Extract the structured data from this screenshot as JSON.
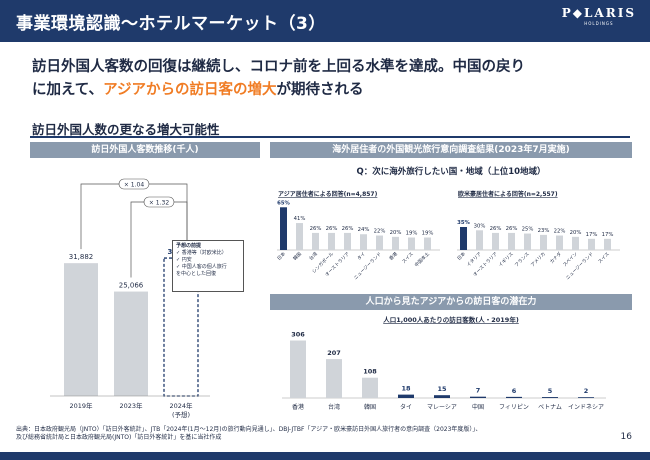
{
  "header": {
    "title": "事業環境認識～ホテルマーケット（3）",
    "logo_main": "P◆LARIS",
    "logo_sub": "HOLDINGS"
  },
  "lead": {
    "line1": "訪日外国人客数の回復は継続し、コロナ前を上回る水準を達成。中国の戻り",
    "line2_pre": "に加えて、",
    "line2_hl": "アジアからの訪日客の増大",
    "line2_post": "が期待される"
  },
  "section_title": "訪日外国人数の更なる増大可能性",
  "left_panel": {
    "head": "訪日外国人客数推移(千人)",
    "multipliers": [
      "× 1.04",
      "× 1.32"
    ],
    "note": {
      "title": "予想の前提",
      "items": [
        "✓ 香港等（対欧米比）",
        "✓ 円安",
        "✓ 中国人客の個人旅行",
        "を中心とした回復"
      ]
    }
  },
  "right_panel": {
    "head": "海外居住者の外国観光旅行意向調査結果(2023年7月実施)",
    "question": "Q：次に海外旅行したい国・地域（上位10地域）",
    "asia_label": "アジア居住者による回答(n=4,857)",
    "west_label": "欧米豪居住者による回答(n=2,557)"
  },
  "bottom_panel": {
    "head": "人口から見たアジアからの訪日客の潜在力",
    "subtitle": "人口1,000人あたりの訪日客数(人・2019年)"
  },
  "footer": {
    "line1": "出典：日本政府観光局（JNTO）「訪日外客統計」、JTB「2024年(1月～12月)の旅行動向見通し」、DBJ-JTBF「アジア・欧米豪訪日外国人旅行者の意向調査（2023年度版）」、",
    "line2": "及び総務省統計局と日本政府観光局(JNTO)「訪日外客統計」を基に当社作成"
  },
  "page_number": "16",
  "colors": {
    "navy": "#1f3a6b",
    "accent": "#f07c24",
    "bar_gray": "#d0d4d9",
    "bar_navy": "#1f3a6b",
    "panel_gray": "#8a9aad"
  },
  "chart_data": [
    {
      "type": "bar",
      "categories": [
        "2019年",
        "2023年",
        "2024年"
      ],
      "category_sublabels": [
        "",
        "",
        "(予想)"
      ],
      "values": [
        31882,
        25066,
        33100
      ],
      "value_labels": [
        "31,882",
        "25,066",
        "33,100"
      ],
      "forecast_index": 2,
      "ylim": [
        0,
        36000
      ]
    },
    {
      "type": "bar",
      "title": "アジア居住者による回答(n=4,857)",
      "categories": [
        "日本",
        "韓国",
        "台湾",
        "シンガポール",
        "オーストラリア",
        "タイ",
        "ニュージーランド",
        "香港",
        "スイス",
        "中国本土"
      ],
      "values": [
        65,
        41,
        26,
        26,
        26,
        24,
        22,
        20,
        19,
        19
      ],
      "value_labels": [
        "65%",
        "41%",
        "26%",
        "26%",
        "26%",
        "24%",
        "22%",
        "20%",
        "19%",
        "19%"
      ],
      "ylim": [
        0,
        70
      ]
    },
    {
      "type": "bar",
      "title": "欧米豪居住者による回答(n=2,557)",
      "categories": [
        "日本",
        "イタリア",
        "オーストラリア",
        "イギリス",
        "フランス",
        "アメリカ",
        "カナダ",
        "スペイン",
        "ニュージーランド",
        "スイス"
      ],
      "values": [
        35,
        30,
        26,
        26,
        25,
        23,
        22,
        20,
        17,
        17
      ],
      "value_labels": [
        "35%",
        "30%",
        "26%",
        "26%",
        "25%",
        "23%",
        "22%",
        "20%",
        "17%",
        "17%"
      ],
      "ylim": [
        0,
        70
      ]
    },
    {
      "type": "bar",
      "title": "人口1,000人あたりの訪日客数(人・2019年)",
      "categories": [
        "香港",
        "台湾",
        "韓国",
        "タイ",
        "マレーシア",
        "中国",
        "フィリピン",
        "ベトナム",
        "インドネシア"
      ],
      "values": [
        306,
        207,
        108,
        18,
        15,
        7,
        6,
        5,
        2
      ],
      "value_labels": [
        "306",
        "207",
        "108",
        "18",
        "15",
        "7",
        "6",
        "5",
        "2"
      ],
      "ylim": [
        0,
        330
      ]
    }
  ]
}
